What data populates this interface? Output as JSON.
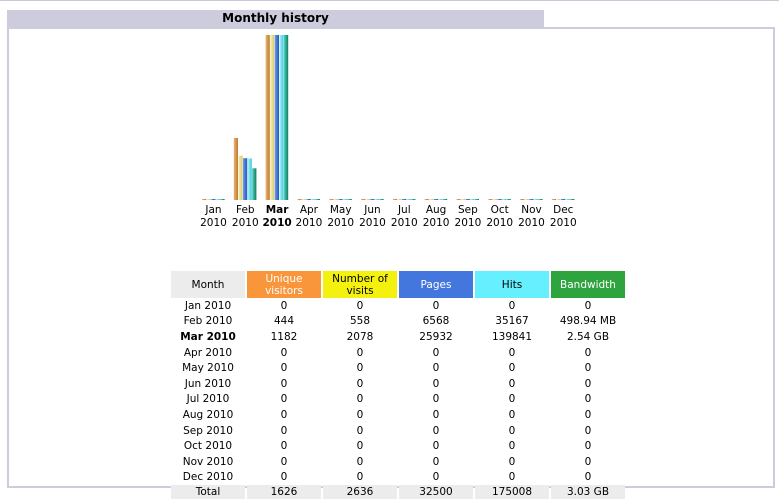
{
  "section_title": "Monthly history",
  "colors": {
    "unique": "#f9963b",
    "visits": "#f4f10f",
    "pages": "#4477dd",
    "hits": "#66f0ff",
    "bandwidth": "#2ea43e",
    "header_bg": "#ccccdd"
  },
  "table": {
    "headers": {
      "month": "Month",
      "unique": "Unique visitors",
      "visits": "Number of visits",
      "pages": "Pages",
      "hits": "Hits",
      "bandwidth": "Bandwidth"
    },
    "rows": [
      {
        "month": "Jan 2010",
        "unique": "0",
        "visits": "0",
        "pages": "0",
        "hits": "0",
        "bandwidth": "0"
      },
      {
        "month": "Feb 2010",
        "unique": "444",
        "visits": "558",
        "pages": "6568",
        "hits": "35167",
        "bandwidth": "498.94 MB"
      },
      {
        "month": "Mar 2010",
        "unique": "1182",
        "visits": "2078",
        "pages": "25932",
        "hits": "139841",
        "bandwidth": "2.54 GB"
      },
      {
        "month": "Apr 2010",
        "unique": "0",
        "visits": "0",
        "pages": "0",
        "hits": "0",
        "bandwidth": "0"
      },
      {
        "month": "May 2010",
        "unique": "0",
        "visits": "0",
        "pages": "0",
        "hits": "0",
        "bandwidth": "0"
      },
      {
        "month": "Jun 2010",
        "unique": "0",
        "visits": "0",
        "pages": "0",
        "hits": "0",
        "bandwidth": "0"
      },
      {
        "month": "Jul 2010",
        "unique": "0",
        "visits": "0",
        "pages": "0",
        "hits": "0",
        "bandwidth": "0"
      },
      {
        "month": "Aug 2010",
        "unique": "0",
        "visits": "0",
        "pages": "0",
        "hits": "0",
        "bandwidth": "0"
      },
      {
        "month": "Sep 2010",
        "unique": "0",
        "visits": "0",
        "pages": "0",
        "hits": "0",
        "bandwidth": "0"
      },
      {
        "month": "Oct 2010",
        "unique": "0",
        "visits": "0",
        "pages": "0",
        "hits": "0",
        "bandwidth": "0"
      },
      {
        "month": "Nov 2010",
        "unique": "0",
        "visits": "0",
        "pages": "0",
        "hits": "0",
        "bandwidth": "0"
      },
      {
        "month": "Dec 2010",
        "unique": "0",
        "visits": "0",
        "pages": "0",
        "hits": "0",
        "bandwidth": "0"
      }
    ],
    "total": {
      "month": "Total",
      "unique": "1626",
      "visits": "2636",
      "pages": "32500",
      "hits": "175008",
      "bandwidth": "3.03 GB"
    }
  },
  "chart_data": {
    "type": "bar",
    "categories": [
      "Jan",
      "Feb",
      "Mar",
      "Apr",
      "May",
      "Jun",
      "Jul",
      "Aug",
      "Sep",
      "Oct",
      "Nov",
      "Dec"
    ],
    "year_labels": [
      "2010",
      "2010",
      "2010",
      "2010",
      "2010",
      "2010",
      "2010",
      "2010",
      "2010",
      "2010",
      "2010",
      "2010"
    ],
    "highlight_category": "Mar",
    "series": [
      {
        "name": "Unique visitors",
        "values": [
          0,
          444,
          1182,
          0,
          0,
          0,
          0,
          0,
          0,
          0,
          0,
          0
        ]
      },
      {
        "name": "Number of visits",
        "values": [
          0,
          558,
          2078,
          0,
          0,
          0,
          0,
          0,
          0,
          0,
          0,
          0
        ]
      },
      {
        "name": "Pages",
        "values": [
          0,
          6568,
          25932,
          0,
          0,
          0,
          0,
          0,
          0,
          0,
          0,
          0
        ]
      },
      {
        "name": "Hits",
        "values": [
          0,
          35167,
          139841,
          0,
          0,
          0,
          0,
          0,
          0,
          0,
          0,
          0
        ]
      },
      {
        "name": "Bandwidth (MB)",
        "values": [
          0,
          498.94,
          2600.96,
          0,
          0,
          0,
          0,
          0,
          0,
          0,
          0,
          0
        ]
      }
    ],
    "series_colors": [
      [
        "#e9b47a",
        "#c07a2c"
      ],
      [
        "#f8f3b8",
        "#d8c66a"
      ],
      [
        "#6a9cf2",
        "#2a55b8"
      ],
      [
        "#b2f7ff",
        "#3ec6d6"
      ],
      [
        "#4fd0b8",
        "#157a62"
      ]
    ],
    "grid": false
  }
}
